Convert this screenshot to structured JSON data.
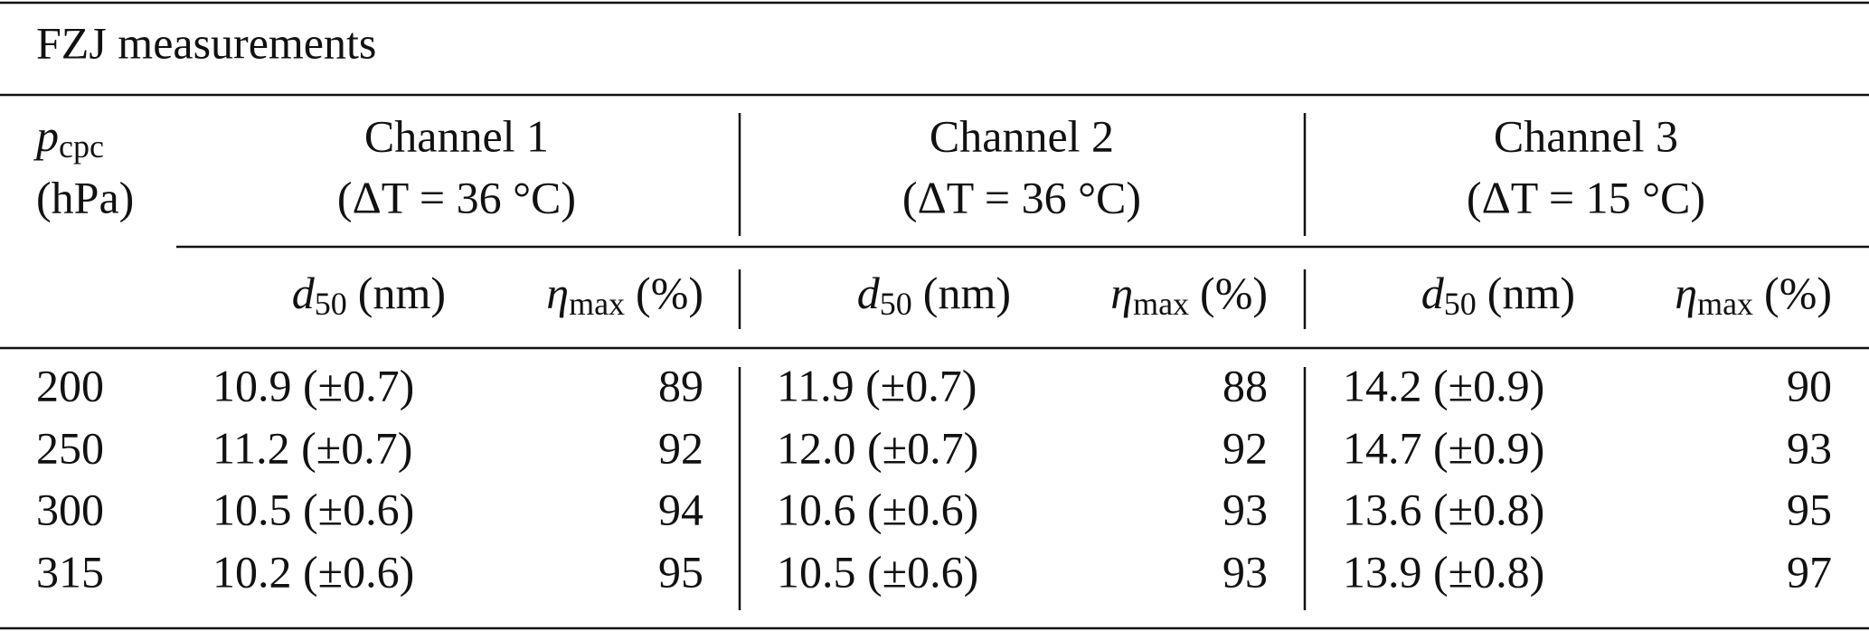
{
  "table": {
    "title": "FZJ measurements",
    "row_header": {
      "symbol": "p",
      "subscript": "cpc",
      "unit": "(hPa)"
    },
    "channels": [
      {
        "name": "Channel 1",
        "condition": "(ΔT = 36 °C)"
      },
      {
        "name": "Channel 2",
        "condition": "(ΔT = 36 °C)"
      },
      {
        "name": "Channel 3",
        "condition": "(ΔT = 15 °C)"
      }
    ],
    "subheaders": {
      "d50": {
        "symbol": "d",
        "subscript": "50",
        "unit": "(nm)"
      },
      "eta_max": {
        "symbol": "η",
        "subscript": "max",
        "unit": "(%)"
      }
    },
    "rows": [
      {
        "pressure": 200,
        "channels": [
          {
            "d50": "10.9 (±0.7)",
            "eta_max": 89
          },
          {
            "d50": "11.9 (±0.7)",
            "eta_max": 88
          },
          {
            "d50": "14.2 (±0.9)",
            "eta_max": 90
          }
        ]
      },
      {
        "pressure": 250,
        "channels": [
          {
            "d50": "11.2 (±0.7)",
            "eta_max": 92
          },
          {
            "d50": "12.0 (±0.7)",
            "eta_max": 92
          },
          {
            "d50": "14.7 (±0.9)",
            "eta_max": 93
          }
        ]
      },
      {
        "pressure": 300,
        "channels": [
          {
            "d50": "10.5 (±0.6)",
            "eta_max": 94
          },
          {
            "d50": "10.6 (±0.6)",
            "eta_max": 93
          },
          {
            "d50": "13.6 (±0.8)",
            "eta_max": 95
          }
        ]
      },
      {
        "pressure": 315,
        "channels": [
          {
            "d50": "10.2 (±0.6)",
            "eta_max": 95
          },
          {
            "d50": "10.5 (±0.6)",
            "eta_max": 93
          },
          {
            "d50": "13.9 (±0.8)",
            "eta_max": 97
          }
        ]
      }
    ]
  }
}
